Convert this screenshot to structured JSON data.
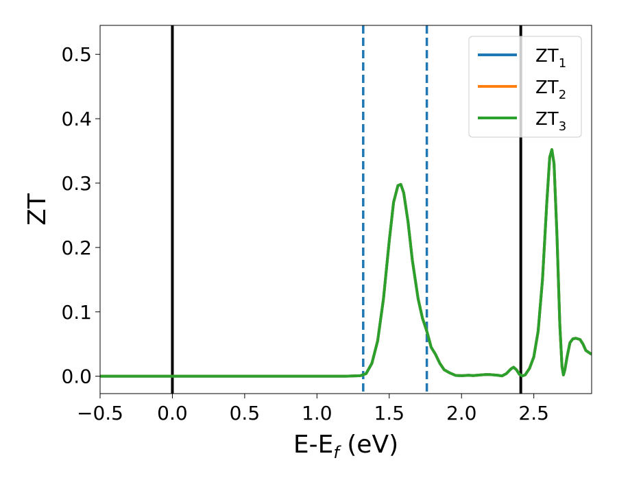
{
  "chart_data": {
    "type": "line",
    "xlabel": "E-E_f (eV)",
    "xlabel_parts": {
      "main": "E-E",
      "sub": "f",
      "unit": " (eV)"
    },
    "ylabel": "ZT",
    "xlim": [
      -0.5,
      2.9
    ],
    "ylim": [
      -0.027,
      0.545
    ],
    "xticks": [
      -0.5,
      0.0,
      0.5,
      1.0,
      1.5,
      2.0,
      2.5
    ],
    "xtick_labels": [
      "−0.5",
      "0.0",
      "0.5",
      "1.0",
      "1.5",
      "2.0",
      "2.5"
    ],
    "yticks": [
      0.0,
      0.1,
      0.2,
      0.3,
      0.4,
      0.5
    ],
    "ytick_labels": [
      "0.0",
      "0.1",
      "0.2",
      "0.3",
      "0.4",
      "0.5"
    ],
    "grid": false,
    "legend_position": "top-right",
    "series": [
      {
        "name": "ZT_1",
        "label_main": "ZT",
        "label_sub": "1",
        "color": "#1f77b4",
        "points": [
          [
            -0.5,
            0
          ],
          [
            1.2,
            0
          ],
          [
            1.3,
            0.0008
          ],
          [
            1.34,
            0.004
          ],
          [
            1.38,
            0.02
          ],
          [
            1.42,
            0.055
          ],
          [
            1.46,
            0.12
          ],
          [
            1.5,
            0.21
          ],
          [
            1.53,
            0.27
          ],
          [
            1.56,
            0.296
          ],
          [
            1.58,
            0.298
          ],
          [
            1.6,
            0.285
          ],
          [
            1.63,
            0.24
          ],
          [
            1.66,
            0.18
          ],
          [
            1.7,
            0.12
          ],
          [
            1.73,
            0.09
          ],
          [
            1.76,
            0.07
          ],
          [
            1.79,
            0.045
          ],
          [
            1.82,
            0.034
          ],
          [
            1.85,
            0.02
          ],
          [
            1.88,
            0.01
          ],
          [
            1.92,
            0.005
          ],
          [
            1.96,
            0.0012
          ],
          [
            2.0,
            0.0008
          ],
          [
            2.05,
            0.0015
          ],
          [
            2.08,
            0.001
          ],
          [
            2.12,
            0.0018
          ],
          [
            2.16,
            0.0025
          ],
          [
            2.2,
            0.0025
          ],
          [
            2.25,
            0.0015
          ],
          [
            2.28,
            0.0005
          ],
          [
            2.31,
            0.004
          ],
          [
            2.34,
            0.011
          ],
          [
            2.36,
            0.014
          ],
          [
            2.38,
            0.01
          ],
          [
            2.4,
            0.003
          ],
          [
            2.42,
            0.0005
          ],
          [
            2.44,
            0.002
          ],
          [
            2.47,
            0.012
          ],
          [
            2.5,
            0.03
          ],
          [
            2.53,
            0.07
          ],
          [
            2.56,
            0.15
          ],
          [
            2.59,
            0.27
          ],
          [
            2.61,
            0.34
          ],
          [
            2.625,
            0.352
          ],
          [
            2.64,
            0.33
          ],
          [
            2.66,
            0.22
          ],
          [
            2.68,
            0.08
          ],
          [
            2.695,
            0.015
          ],
          [
            2.705,
            0.002
          ],
          [
            2.715,
            0.01
          ],
          [
            2.73,
            0.03
          ],
          [
            2.75,
            0.052
          ],
          [
            2.77,
            0.058
          ],
          [
            2.79,
            0.059
          ],
          [
            2.82,
            0.057
          ],
          [
            2.84,
            0.05
          ],
          [
            2.86,
            0.04
          ],
          [
            2.88,
            0.037
          ],
          [
            2.9,
            0.034
          ]
        ]
      },
      {
        "name": "ZT_2",
        "label_main": "ZT",
        "label_sub": "2",
        "color": "#ff7f0e",
        "points": [
          [
            -0.5,
            0
          ],
          [
            1.2,
            0
          ],
          [
            1.3,
            0.0008
          ],
          [
            1.34,
            0.004
          ],
          [
            1.38,
            0.02
          ],
          [
            1.42,
            0.055
          ],
          [
            1.46,
            0.12
          ],
          [
            1.5,
            0.21
          ],
          [
            1.53,
            0.27
          ],
          [
            1.56,
            0.296
          ],
          [
            1.58,
            0.298
          ],
          [
            1.6,
            0.285
          ],
          [
            1.63,
            0.24
          ],
          [
            1.66,
            0.18
          ],
          [
            1.7,
            0.12
          ],
          [
            1.73,
            0.09
          ],
          [
            1.76,
            0.07
          ],
          [
            1.79,
            0.045
          ],
          [
            1.82,
            0.034
          ],
          [
            1.85,
            0.02
          ],
          [
            1.88,
            0.01
          ],
          [
            1.92,
            0.005
          ],
          [
            1.96,
            0.0012
          ],
          [
            2.0,
            0.0008
          ],
          [
            2.05,
            0.0015
          ],
          [
            2.08,
            0.001
          ],
          [
            2.12,
            0.0018
          ],
          [
            2.16,
            0.0025
          ],
          [
            2.2,
            0.0025
          ],
          [
            2.25,
            0.0015
          ],
          [
            2.28,
            0.0005
          ],
          [
            2.31,
            0.004
          ],
          [
            2.34,
            0.011
          ],
          [
            2.36,
            0.014
          ],
          [
            2.38,
            0.01
          ],
          [
            2.4,
            0.003
          ],
          [
            2.42,
            0.0005
          ],
          [
            2.44,
            0.002
          ],
          [
            2.47,
            0.012
          ],
          [
            2.5,
            0.03
          ],
          [
            2.53,
            0.07
          ],
          [
            2.56,
            0.15
          ],
          [
            2.59,
            0.27
          ],
          [
            2.61,
            0.34
          ],
          [
            2.625,
            0.352
          ],
          [
            2.64,
            0.33
          ],
          [
            2.66,
            0.22
          ],
          [
            2.68,
            0.08
          ],
          [
            2.695,
            0.015
          ],
          [
            2.705,
            0.002
          ],
          [
            2.715,
            0.01
          ],
          [
            2.73,
            0.03
          ],
          [
            2.75,
            0.052
          ],
          [
            2.77,
            0.058
          ],
          [
            2.79,
            0.059
          ],
          [
            2.82,
            0.057
          ],
          [
            2.84,
            0.05
          ],
          [
            2.86,
            0.04
          ],
          [
            2.88,
            0.037
          ],
          [
            2.9,
            0.034
          ]
        ]
      },
      {
        "name": "ZT_3",
        "label_main": "ZT",
        "label_sub": "3",
        "color": "#2ca02c",
        "points": [
          [
            -0.5,
            0
          ],
          [
            1.2,
            0
          ],
          [
            1.3,
            0.0008
          ],
          [
            1.34,
            0.004
          ],
          [
            1.38,
            0.02
          ],
          [
            1.42,
            0.055
          ],
          [
            1.46,
            0.12
          ],
          [
            1.5,
            0.21
          ],
          [
            1.53,
            0.27
          ],
          [
            1.56,
            0.296
          ],
          [
            1.58,
            0.298
          ],
          [
            1.6,
            0.285
          ],
          [
            1.63,
            0.24
          ],
          [
            1.66,
            0.18
          ],
          [
            1.7,
            0.12
          ],
          [
            1.73,
            0.09
          ],
          [
            1.76,
            0.07
          ],
          [
            1.79,
            0.045
          ],
          [
            1.82,
            0.034
          ],
          [
            1.85,
            0.02
          ],
          [
            1.88,
            0.01
          ],
          [
            1.92,
            0.005
          ],
          [
            1.96,
            0.0012
          ],
          [
            2.0,
            0.0008
          ],
          [
            2.05,
            0.0015
          ],
          [
            2.08,
            0.001
          ],
          [
            2.12,
            0.0018
          ],
          [
            2.16,
            0.0025
          ],
          [
            2.2,
            0.0025
          ],
          [
            2.25,
            0.0015
          ],
          [
            2.28,
            0.0005
          ],
          [
            2.31,
            0.004
          ],
          [
            2.34,
            0.011
          ],
          [
            2.36,
            0.014
          ],
          [
            2.38,
            0.01
          ],
          [
            2.4,
            0.003
          ],
          [
            2.42,
            0.0005
          ],
          [
            2.44,
            0.002
          ],
          [
            2.47,
            0.012
          ],
          [
            2.5,
            0.03
          ],
          [
            2.53,
            0.07
          ],
          [
            2.56,
            0.15
          ],
          [
            2.59,
            0.27
          ],
          [
            2.61,
            0.34
          ],
          [
            2.625,
            0.352
          ],
          [
            2.64,
            0.33
          ],
          [
            2.66,
            0.22
          ],
          [
            2.68,
            0.08
          ],
          [
            2.695,
            0.015
          ],
          [
            2.705,
            0.002
          ],
          [
            2.715,
            0.01
          ],
          [
            2.73,
            0.03
          ],
          [
            2.75,
            0.052
          ],
          [
            2.77,
            0.058
          ],
          [
            2.79,
            0.059
          ],
          [
            2.82,
            0.057
          ],
          [
            2.84,
            0.05
          ],
          [
            2.86,
            0.04
          ],
          [
            2.88,
            0.037
          ],
          [
            2.9,
            0.034
          ]
        ]
      }
    ],
    "vlines": [
      {
        "x": 0.0,
        "style": "solid",
        "color": "#000000"
      },
      {
        "x": 2.41,
        "style": "solid",
        "color": "#000000"
      },
      {
        "x": 1.32,
        "style": "dashed",
        "color": "#1f77b4"
      },
      {
        "x": 1.76,
        "style": "dashed",
        "color": "#1f77b4"
      }
    ]
  }
}
